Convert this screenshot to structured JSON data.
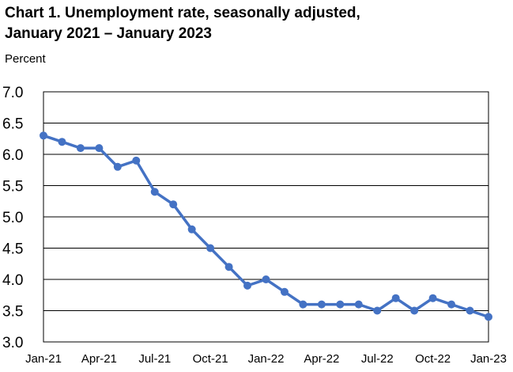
{
  "chart_data": {
    "type": "line",
    "title": [
      "Chart 1. Unemployment rate, seasonally adjusted,",
      "January 2021 – January 2023"
    ],
    "ylabel": "Percent",
    "xlabel": "",
    "ylim": [
      3.0,
      7.0
    ],
    "y_ticks": [
      "7.0",
      "6.5",
      "6.0",
      "5.5",
      "5.0",
      "4.5",
      "4.0",
      "3.5",
      "3.0"
    ],
    "x_tick_labels": [
      "Jan-21",
      "Apr-21",
      "Jul-21",
      "Oct-21",
      "Jan-22",
      "Apr-22",
      "Jul-22",
      "Oct-22",
      "Jan-23"
    ],
    "x": [
      "Jan-21",
      "Feb-21",
      "Mar-21",
      "Apr-21",
      "May-21",
      "Jun-21",
      "Jul-21",
      "Aug-21",
      "Sep-21",
      "Oct-21",
      "Nov-21",
      "Dec-21",
      "Jan-22",
      "Feb-22",
      "Mar-22",
      "Apr-22",
      "May-22",
      "Jun-22",
      "Jul-22",
      "Aug-22",
      "Sep-22",
      "Oct-22",
      "Nov-22",
      "Dec-22",
      "Jan-23"
    ],
    "series": [
      {
        "values": [
          6.3,
          6.2,
          6.1,
          6.1,
          5.8,
          5.9,
          5.4,
          5.2,
          4.8,
          4.5,
          4.2,
          3.9,
          4.0,
          3.8,
          3.6,
          3.6,
          3.6,
          3.6,
          3.5,
          3.7,
          3.5,
          3.7,
          3.6,
          3.5,
          3.4
        ],
        "color": "#4472C4"
      }
    ],
    "grid": true,
    "legend": "none",
    "colors": {
      "line": "#4472C4",
      "grid": "#000000",
      "frame": "#000000"
    }
  }
}
